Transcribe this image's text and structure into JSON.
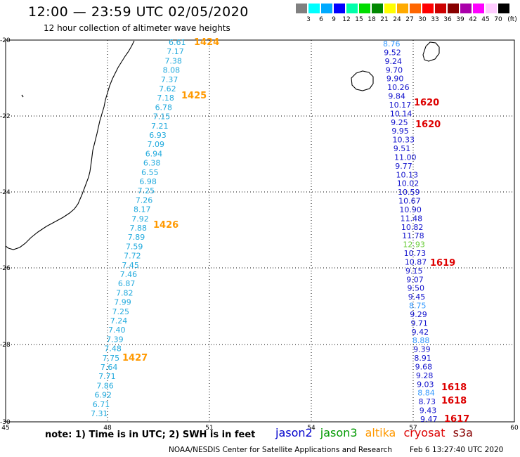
{
  "header": {
    "title": "12:00 — 23:59 UTC 02/05/2020",
    "subtitle": "12 hour collection of altimeter wave heights"
  },
  "legend": {
    "colors": [
      "#808080",
      "#00ffff",
      "#00aaff",
      "#0000ff",
      "#00ffaa",
      "#00dd00",
      "#008800",
      "#ffff00",
      "#ffaa00",
      "#ff6600",
      "#ff0000",
      "#cc0000",
      "#880000",
      "#aa00aa",
      "#ff00ff",
      "#ffccff",
      "#000000"
    ],
    "labels": [
      "3",
      "6",
      "9",
      "12",
      "15",
      "18",
      "21",
      "24",
      "27",
      "30",
      "33",
      "36",
      "39",
      "42",
      "45",
      "70"
    ],
    "unit": "(ft)"
  },
  "axes": {
    "x_ticks": [
      "45",
      "48",
      "51",
      "54",
      "57",
      "60"
    ],
    "y_ticks": [
      "-20",
      "-22",
      "-24",
      "-26",
      "-28",
      "-30"
    ]
  },
  "colors": {
    "jason2": "#0000cc",
    "jason3": "#009900",
    "altika": "#ff9900",
    "cryosat": "#dd0000",
    "s3a": "#880000",
    "track_a": "#22aadd",
    "track_b": "#1111cc",
    "track_b_green": "#66cc33",
    "track_b_light": "#3399ff"
  },
  "track_a": {
    "values": [
      "6.61",
      "7.17",
      "7.38",
      "8.08",
      "7.37",
      "7.62",
      "7.18",
      "6.78",
      "7.15",
      "7.21",
      "6.93",
      "7.09",
      "6.94",
      "6.38",
      "6.55",
      "6.98",
      "7.25",
      "7.26",
      "8.17",
      "7.92",
      "7.88",
      "7.89",
      "7.59",
      "7.72",
      "7.45",
      "7.46",
      "6.87",
      "7.82",
      "7.99",
      "7.25",
      "7.24",
      "7.40",
      "7.39",
      "7.48",
      "7.75",
      "7.64",
      "7.71",
      "7.86",
      "6.92",
      "6.71",
      "7.31"
    ],
    "pass_labels": [
      "1424",
      "1425",
      "1426",
      "1427"
    ]
  },
  "track_b": {
    "values": [
      "8.76",
      "9.52",
      "9.24",
      "9.70",
      "9.90",
      "10.26",
      "9.84",
      "10.17",
      "10.14",
      "9.25",
      "9.95",
      "10.33",
      "9.51",
      "11.00",
      "9.77",
      "10.13",
      "10.02",
      "10.59",
      "10.67",
      "10.90",
      "11.48",
      "10.82",
      "11.78",
      "12.93",
      "10.73",
      "10.87",
      "9.15",
      "9.07",
      "9.50",
      "9.45",
      "8.75",
      "9.29",
      "9.71",
      "9.42",
      "8.88",
      "9.39",
      "8.91",
      "9.68",
      "9.28",
      "9.03",
      "8.84",
      "8.73",
      "9.43",
      "9.47"
    ],
    "pass_labels": [
      "1620",
      "1620",
      "1619",
      "1618",
      "1618",
      "1617"
    ]
  },
  "footer": {
    "note": "note:  1) Time is in UTC;  2) SWH is in feet",
    "satellites": [
      "jason2",
      "jason3",
      "altika",
      "cryosat",
      "s3a"
    ],
    "credit": "NOAA/NESDIS Center for Satellite Applications and Research",
    "timestamp": "Feb  6 13:27:40 UTC 2020"
  }
}
